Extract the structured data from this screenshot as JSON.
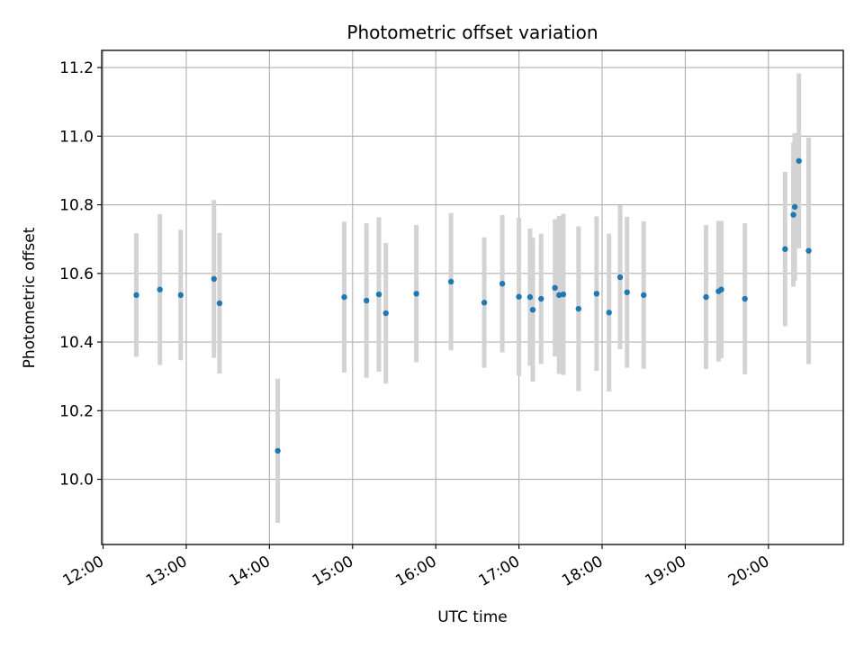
{
  "chart_data": {
    "type": "scatter",
    "title": "Photometric offset variation",
    "xlabel": "UTC time",
    "ylabel": "Photometric offset",
    "x_unit": "hours",
    "xlim": [
      "11:59",
      "20:54"
    ],
    "ylim": [
      9.81,
      11.25
    ],
    "x_ticks": [
      "12:00",
      "13:00",
      "14:00",
      "15:00",
      "16:00",
      "17:00",
      "18:00",
      "19:00",
      "20:00"
    ],
    "y_ticks": [
      "10.0",
      "10.2",
      "10.4",
      "10.6",
      "10.8",
      "11.0",
      "11.2"
    ],
    "grid": true,
    "point_color": "#1f77b4",
    "errorbar_color": "#d3d3d3",
    "series": [
      {
        "points": [
          {
            "x": "12:24",
            "y": 10.537,
            "err": 0.18
          },
          {
            "x": "12:41",
            "y": 10.553,
            "err": 0.22
          },
          {
            "x": "12:56",
            "y": 10.537,
            "err": 0.19
          },
          {
            "x": "13:20",
            "y": 10.584,
            "err": 0.23
          },
          {
            "x": "13:24",
            "y": 10.513,
            "err": 0.205
          },
          {
            "x": "14:06",
            "y": 10.083,
            "err": 0.21
          },
          {
            "x": "14:54",
            "y": 10.531,
            "err": 0.22
          },
          {
            "x": "15:10",
            "y": 10.521,
            "err": 0.225
          },
          {
            "x": "15:19",
            "y": 10.539,
            "err": 0.225
          },
          {
            "x": "15:24",
            "y": 10.484,
            "err": 0.205
          },
          {
            "x": "15:46",
            "y": 10.541,
            "err": 0.2
          },
          {
            "x": "16:11",
            "y": 10.576,
            "err": 0.2
          },
          {
            "x": "16:35",
            "y": 10.515,
            "err": 0.19
          },
          {
            "x": "16:48",
            "y": 10.57,
            "err": 0.2
          },
          {
            "x": "17:00",
            "y": 10.532,
            "err": 0.23
          },
          {
            "x": "17:08",
            "y": 10.531,
            "err": 0.2
          },
          {
            "x": "17:10",
            "y": 10.494,
            "err": 0.21
          },
          {
            "x": "17:16",
            "y": 10.526,
            "err": 0.19
          },
          {
            "x": "17:26",
            "y": 10.558,
            "err": 0.2
          },
          {
            "x": "17:29",
            "y": 10.537,
            "err": 0.23
          },
          {
            "x": "17:32",
            "y": 10.539,
            "err": 0.235
          },
          {
            "x": "17:43",
            "y": 10.497,
            "err": 0.24
          },
          {
            "x": "17:56",
            "y": 10.541,
            "err": 0.225
          },
          {
            "x": "18:05",
            "y": 10.486,
            "err": 0.23
          },
          {
            "x": "18:13",
            "y": 10.589,
            "err": 0.21
          },
          {
            "x": "18:18",
            "y": 10.545,
            "err": 0.22
          },
          {
            "x": "18:30",
            "y": 10.537,
            "err": 0.215
          },
          {
            "x": "19:15",
            "y": 10.531,
            "err": 0.21
          },
          {
            "x": "19:24",
            "y": 10.548,
            "err": 0.205
          },
          {
            "x": "19:26",
            "y": 10.553,
            "err": 0.2
          },
          {
            "x": "19:43",
            "y": 10.526,
            "err": 0.22
          },
          {
            "x": "20:12",
            "y": 10.671,
            "err": 0.225
          },
          {
            "x": "20:18",
            "y": 10.771,
            "err": 0.21
          },
          {
            "x": "20:19",
            "y": 10.794,
            "err": 0.215
          },
          {
            "x": "20:22",
            "y": 10.928,
            "err": 0.255
          },
          {
            "x": "20:29",
            "y": 10.666,
            "err": 0.33
          }
        ]
      }
    ]
  }
}
